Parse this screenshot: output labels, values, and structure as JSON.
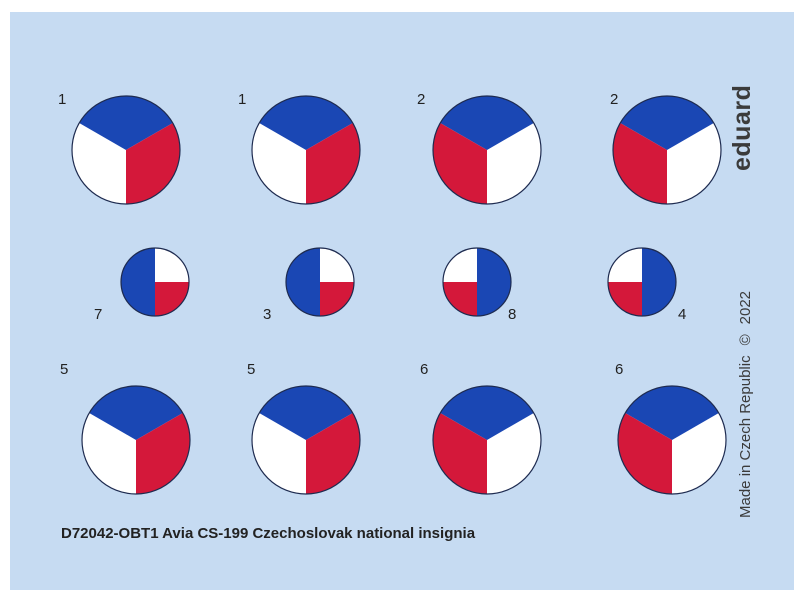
{
  "sheet": {
    "brand": "eduard",
    "caption": "D72042-OBT1 Avia CS-199 Czechoslovak national insignia",
    "made_in": "Made in Czech Republic",
    "copyright_symbol": "©",
    "year": "2022"
  },
  "colors": {
    "background": "#c6dbf2",
    "blue": "#1a47b4",
    "red": "#d4183a",
    "white": "#ffffff",
    "outline": "#1e2b50"
  },
  "insignia": [
    {
      "label": "1",
      "variant": "blue-top"
    },
    {
      "label": "1",
      "variant": "blue-top"
    },
    {
      "label": "2",
      "variant": "blue-top-mirror"
    },
    {
      "label": "2",
      "variant": "blue-top-mirror"
    },
    {
      "label": "7",
      "variant": "blue-left"
    },
    {
      "label": "3",
      "variant": "blue-left"
    },
    {
      "label": "8",
      "variant": "blue-right"
    },
    {
      "label": "4",
      "variant": "blue-right"
    },
    {
      "label": "5",
      "variant": "blue-top"
    },
    {
      "label": "5",
      "variant": "blue-top"
    },
    {
      "label": "6",
      "variant": "blue-top-mirror"
    },
    {
      "label": "6",
      "variant": "blue-top-mirror"
    }
  ]
}
